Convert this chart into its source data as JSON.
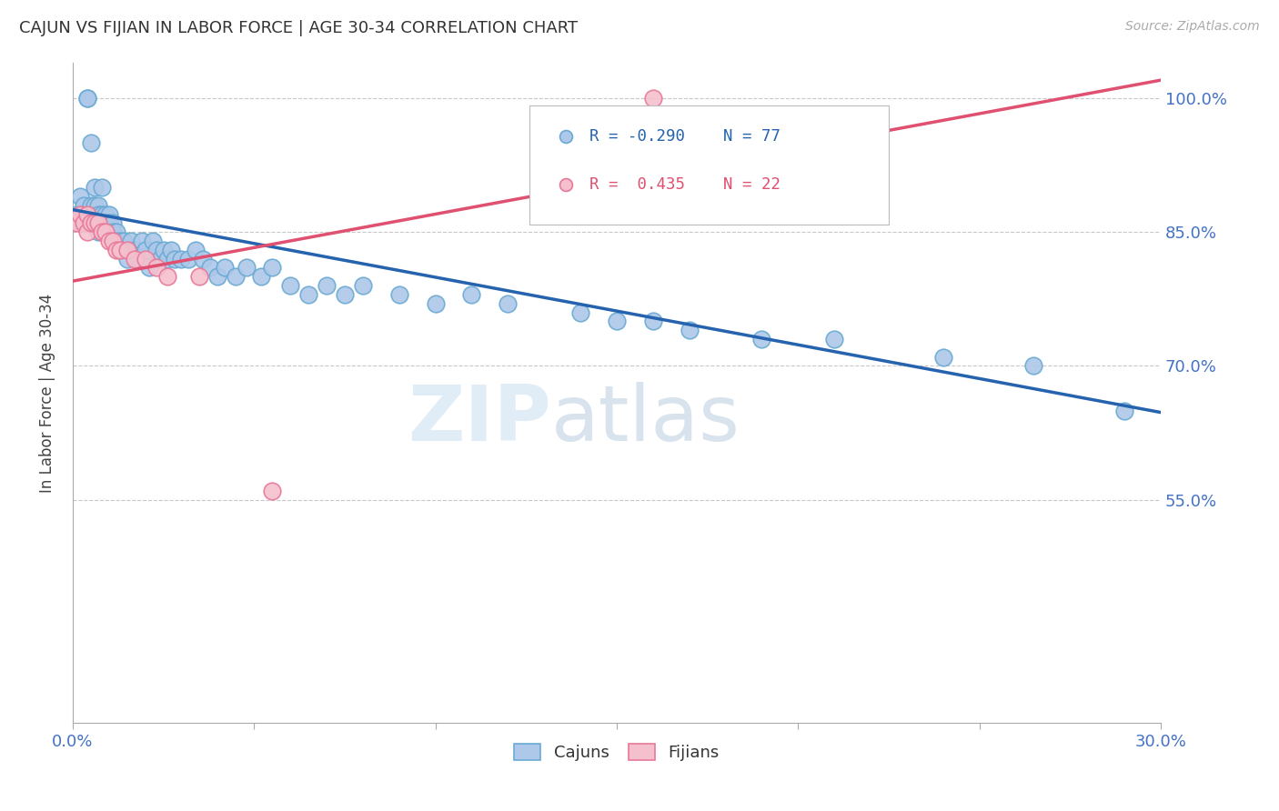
{
  "title": "CAJUN VS FIJIAN IN LABOR FORCE | AGE 30-34 CORRELATION CHART",
  "source_text": "Source: ZipAtlas.com",
  "ylabel": "In Labor Force | Age 30-34",
  "xlim": [
    0.0,
    0.3
  ],
  "ylim": [
    0.3,
    1.04
  ],
  "xticks": [
    0.0,
    0.05,
    0.1,
    0.15,
    0.2,
    0.25,
    0.3
  ],
  "xticklabels": [
    "0.0%",
    "",
    "",
    "",
    "",
    "",
    "30.0%"
  ],
  "yticks": [
    0.55,
    0.7,
    0.85,
    1.0
  ],
  "yticklabels": [
    "55.0%",
    "70.0%",
    "85.0%",
    "100.0%"
  ],
  "cajun_color": "#adc8e8",
  "cajun_edge_color": "#6aaad4",
  "fijian_color": "#f5c0ce",
  "fijian_edge_color": "#e87898",
  "trend_cajun_color": "#2563ae",
  "trend_fijian_color": "#e05070",
  "watermark_zip": "ZIP",
  "watermark_atlas": "atlas",
  "watermark_color_zip": "#c5d8ee",
  "watermark_color_atlas": "#c5d8ee",
  "legend_R_cajun": "-0.290",
  "legend_N_cajun": "77",
  "legend_R_fijian": "0.435",
  "legend_N_fijian": "22",
  "cajun_x": [
    0.001,
    0.002,
    0.002,
    0.003,
    0.003,
    0.003,
    0.004,
    0.004,
    0.005,
    0.005,
    0.005,
    0.006,
    0.006,
    0.006,
    0.007,
    0.007,
    0.007,
    0.007,
    0.008,
    0.008,
    0.008,
    0.009,
    0.009,
    0.01,
    0.01,
    0.01,
    0.011,
    0.011,
    0.012,
    0.012,
    0.013,
    0.013,
    0.014,
    0.015,
    0.015,
    0.016,
    0.017,
    0.018,
    0.019,
    0.02,
    0.021,
    0.022,
    0.023,
    0.024,
    0.025,
    0.026,
    0.027,
    0.028,
    0.03,
    0.032,
    0.034,
    0.036,
    0.038,
    0.04,
    0.042,
    0.045,
    0.048,
    0.052,
    0.055,
    0.06,
    0.065,
    0.07,
    0.075,
    0.08,
    0.09,
    0.1,
    0.11,
    0.12,
    0.14,
    0.15,
    0.16,
    0.17,
    0.19,
    0.21,
    0.24,
    0.265,
    0.29
  ],
  "cajun_y": [
    0.87,
    0.89,
    0.86,
    0.88,
    0.87,
    0.86,
    1.0,
    1.0,
    0.95,
    0.88,
    0.86,
    0.9,
    0.88,
    0.86,
    0.88,
    0.87,
    0.86,
    0.85,
    0.9,
    0.87,
    0.85,
    0.87,
    0.86,
    0.87,
    0.86,
    0.85,
    0.86,
    0.85,
    0.85,
    0.84,
    0.84,
    0.83,
    0.84,
    0.83,
    0.82,
    0.84,
    0.83,
    0.82,
    0.84,
    0.83,
    0.81,
    0.84,
    0.83,
    0.82,
    0.83,
    0.82,
    0.83,
    0.82,
    0.82,
    0.82,
    0.83,
    0.82,
    0.81,
    0.8,
    0.81,
    0.8,
    0.81,
    0.8,
    0.81,
    0.79,
    0.78,
    0.79,
    0.78,
    0.79,
    0.78,
    0.77,
    0.78,
    0.77,
    0.76,
    0.75,
    0.75,
    0.74,
    0.73,
    0.73,
    0.71,
    0.7,
    0.65
  ],
  "fijian_x": [
    0.001,
    0.002,
    0.003,
    0.004,
    0.004,
    0.005,
    0.006,
    0.007,
    0.008,
    0.009,
    0.01,
    0.011,
    0.012,
    0.013,
    0.015,
    0.017,
    0.02,
    0.023,
    0.026,
    0.035,
    0.055,
    0.16
  ],
  "fijian_y": [
    0.86,
    0.87,
    0.86,
    0.87,
    0.85,
    0.86,
    0.86,
    0.86,
    0.85,
    0.85,
    0.84,
    0.84,
    0.83,
    0.83,
    0.83,
    0.82,
    0.82,
    0.81,
    0.8,
    0.8,
    0.56,
    1.0
  ],
  "trend_cajun_x0": 0.0,
  "trend_cajun_y0": 0.875,
  "trend_cajun_x1": 0.3,
  "trend_cajun_y1": 0.648,
  "trend_fijian_x0": 0.0,
  "trend_fijian_y0": 0.795,
  "trend_fijian_x1": 0.3,
  "trend_fijian_y1": 1.02
}
